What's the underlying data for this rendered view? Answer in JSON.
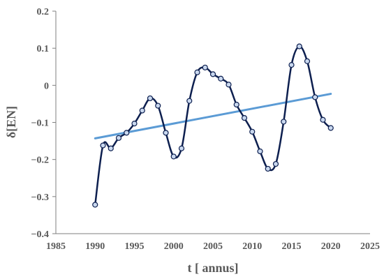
{
  "chart_data": {
    "type": "scatter",
    "title": "",
    "xlabel": "t [ annus]",
    "ylabel": "δ[EN]",
    "xlim": [
      1985,
      2025
    ],
    "ylim": [
      -0.4,
      0.2
    ],
    "x_ticks": [
      1985,
      1990,
      1995,
      2000,
      2005,
      2010,
      2015,
      2020,
      2025
    ],
    "y_ticks": [
      0.2,
      0.1,
      0,
      -0.1,
      -0.2,
      -0.3,
      -0.4
    ],
    "y_tick_labels": [
      "0.2",
      "0.1",
      "0",
      "−0.1",
      "−0.2",
      "−0.3",
      "−0.4"
    ],
    "grid": false,
    "legend": "none",
    "series": [
      {
        "style": "smoothed line with circle markers",
        "color": "#0d1f4f",
        "marker_fill": "#c9d8ef",
        "x": [
          1990,
          1991,
          1992,
          1993,
          1994,
          1995,
          1996,
          1997,
          1998,
          1999,
          2000,
          2001,
          2002,
          2003,
          2004,
          2005,
          2006,
          2007,
          2008,
          2009,
          2010,
          2011,
          2012,
          2013,
          2014,
          2015,
          2016,
          2017,
          2018,
          2019,
          2020
        ],
        "y": [
          -0.322,
          -0.162,
          -0.17,
          -0.142,
          -0.128,
          -0.103,
          -0.068,
          -0.035,
          -0.055,
          -0.128,
          -0.192,
          -0.17,
          -0.042,
          0.035,
          0.048,
          0.03,
          0.018,
          0.002,
          -0.052,
          -0.088,
          -0.125,
          -0.178,
          -0.225,
          -0.212,
          -0.098,
          0.055,
          0.105,
          0.065,
          -0.032,
          -0.093,
          -0.115
        ]
      },
      {
        "style": "linear trendline",
        "color": "#5b9bd5",
        "x": [
          1990,
          2020
        ],
        "y": [
          -0.143,
          -0.023
        ]
      }
    ]
  }
}
